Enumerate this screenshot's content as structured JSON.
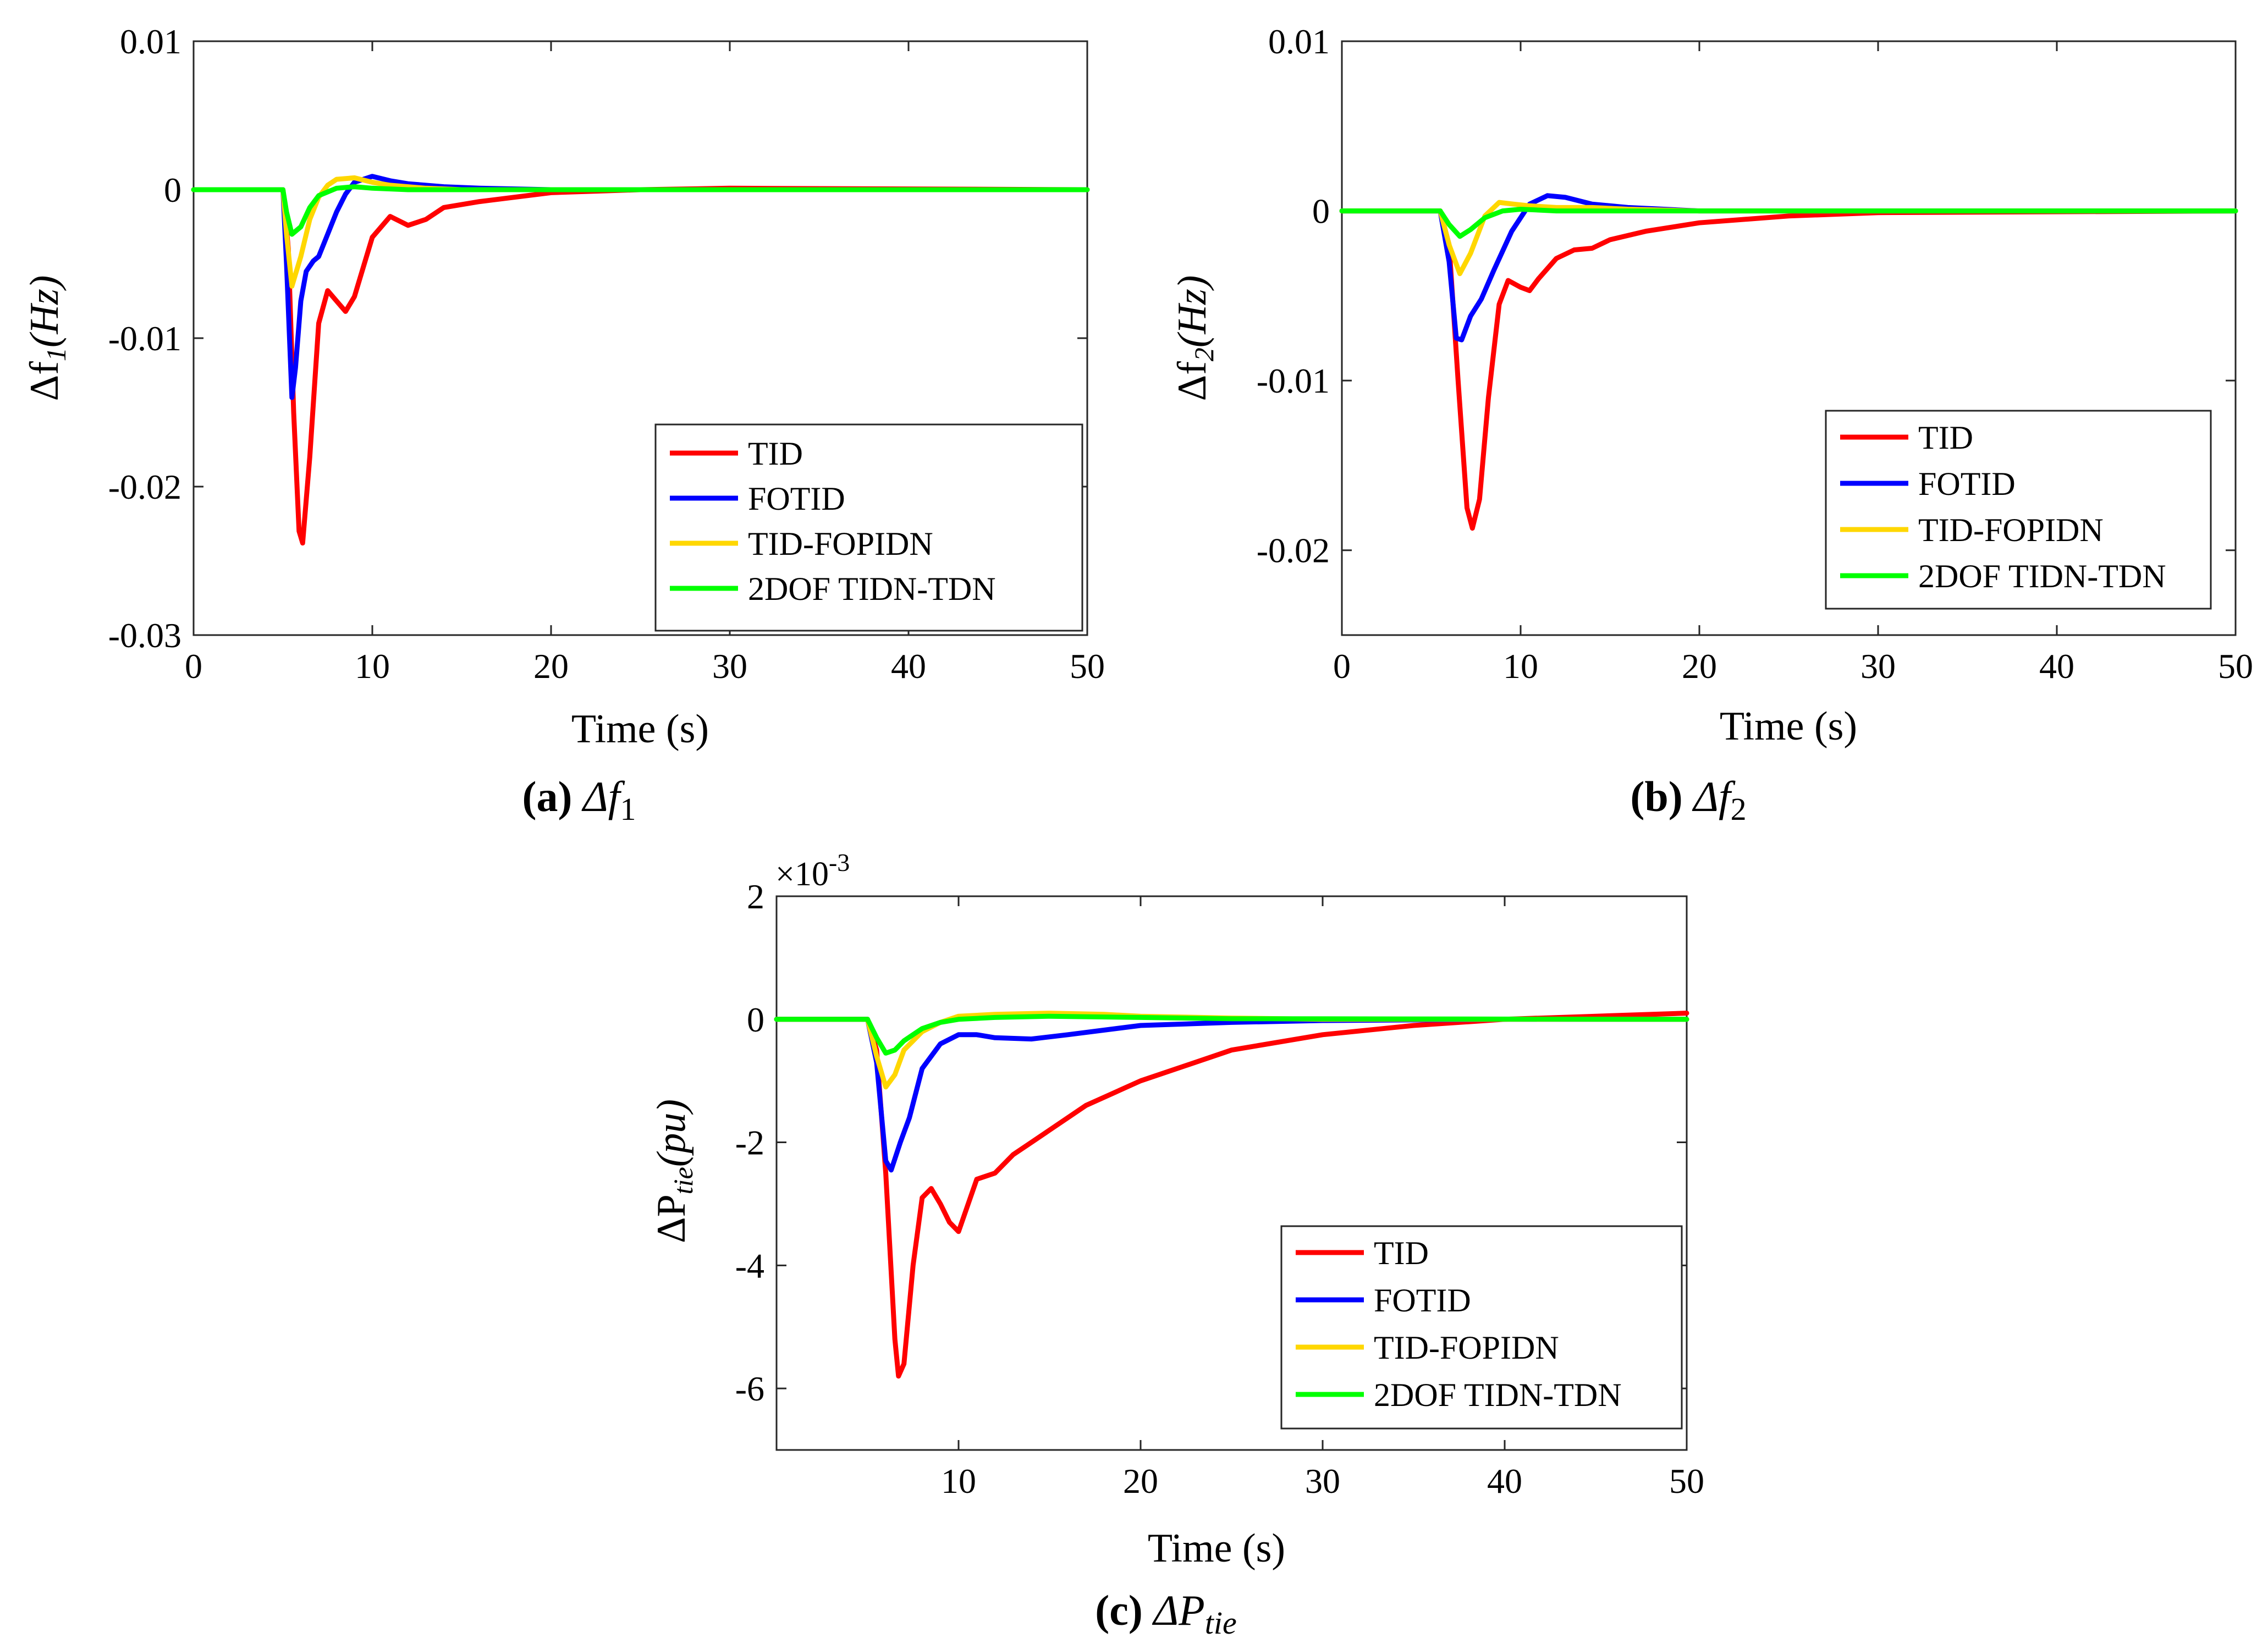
{
  "figure": {
    "colors": {
      "TID": "#ff0000",
      "FOTID": "#0000ff",
      "TID-FOPIDN": "#ffd700",
      "2DOF TIDN-TDN": "#00ff00",
      "axes": "#262626"
    }
  },
  "chart_data": [
    {
      "id": "a",
      "type": "line",
      "caption_label": "(a)",
      "caption_math": "Δf",
      "caption_sub": "1",
      "ylabel_main": "Δf",
      "ylabel_sub": "1",
      "ylabel_unit": "(Hz)",
      "xlabel": "Time (s)",
      "xlim": [
        0,
        50
      ],
      "ylim": [
        -0.03,
        0.01
      ],
      "xticks": [
        0,
        10,
        20,
        30,
        40,
        50
      ],
      "xtick_labels": [
        "0",
        "10",
        "20",
        "30",
        "40",
        "50"
      ],
      "yticks": [
        -0.03,
        -0.02,
        -0.01,
        0,
        0.01
      ],
      "ytick_labels": [
        "-0.03",
        "-0.02",
        "-0.01",
        "0",
        "0.01"
      ],
      "multiplier": "",
      "legend_position": "bottom-right",
      "series": [
        {
          "name": "TID",
          "x": [
            0,
            5,
            5.3,
            5.6,
            5.9,
            6.1,
            6.5,
            7,
            7.5,
            8,
            8.5,
            9,
            10,
            11,
            12,
            13,
            14,
            16,
            20,
            25,
            30,
            50
          ],
          "y": [
            0,
            0,
            -0.004,
            -0.015,
            -0.023,
            -0.0238,
            -0.018,
            -0.009,
            -0.0068,
            -0.0075,
            -0.0082,
            -0.0072,
            -0.0032,
            -0.0018,
            -0.0024,
            -0.002,
            -0.0012,
            -0.0008,
            -0.0002,
            0,
            0.0001,
            0
          ]
        },
        {
          "name": "FOTID",
          "x": [
            0,
            5,
            5.2,
            5.5,
            5.7,
            6,
            6.3,
            6.7,
            7,
            7.5,
            8,
            8.5,
            9,
            10,
            11,
            12,
            14,
            16,
            20,
            50
          ],
          "y": [
            0,
            0,
            -0.005,
            -0.014,
            -0.012,
            -0.0075,
            -0.0055,
            -0.0048,
            -0.0045,
            -0.003,
            -0.0015,
            -0.0003,
            0.0005,
            0.0009,
            0.0006,
            0.0004,
            0.0002,
            0.0001,
            0,
            0
          ]
        },
        {
          "name": "TID-FOPIDN",
          "x": [
            0,
            5,
            5.2,
            5.5,
            6,
            6.5,
            7,
            7.5,
            8,
            9,
            10,
            11,
            13,
            15,
            50
          ],
          "y": [
            0,
            0,
            -0.003,
            -0.0065,
            -0.0045,
            -0.002,
            -0.0005,
            0.0003,
            0.0007,
            0.0008,
            0.0005,
            0.0003,
            0.0001,
            0,
            0
          ]
        },
        {
          "name": "2DOF TIDN-TDN",
          "x": [
            0,
            5,
            5.2,
            5.5,
            6,
            6.5,
            7,
            8,
            9,
            10,
            12,
            50
          ],
          "y": [
            0,
            0,
            -0.0015,
            -0.003,
            -0.0025,
            -0.0012,
            -0.0004,
            0.0001,
            0.0002,
            0.0001,
            0,
            0
          ]
        }
      ]
    },
    {
      "id": "b",
      "type": "line",
      "caption_label": "(b)",
      "caption_math": "Δf",
      "caption_sub": "2",
      "ylabel_main": "Δf",
      "ylabel_sub": "2",
      "ylabel_unit": "(Hz)",
      "xlabel": "Time (s)",
      "xlim": [
        0,
        50
      ],
      "ylim": [
        -0.025,
        0.01
      ],
      "xticks": [
        0,
        10,
        20,
        30,
        40,
        50
      ],
      "xtick_labels": [
        "0",
        "10",
        "20",
        "30",
        "40",
        "50"
      ],
      "yticks": [
        -0.02,
        -0.01,
        0,
        0.01
      ],
      "ytick_labels": [
        "-0.02",
        "-0.01",
        "0",
        "0.01"
      ],
      "multiplier": "",
      "legend_position": "right",
      "series": [
        {
          "name": "TID",
          "x": [
            0,
            5.5,
            6,
            6.5,
            7,
            7.3,
            7.7,
            8.2,
            8.8,
            9.3,
            10,
            10.5,
            11,
            12,
            13,
            14,
            15,
            17,
            20,
            25,
            30,
            50
          ],
          "y": [
            0,
            0,
            -0.002,
            -0.01,
            -0.0175,
            -0.0187,
            -0.017,
            -0.011,
            -0.0055,
            -0.0041,
            -0.0045,
            -0.0047,
            -0.004,
            -0.0028,
            -0.0023,
            -0.0022,
            -0.0017,
            -0.0012,
            -0.0007,
            -0.0003,
            -0.0001,
            0
          ]
        },
        {
          "name": "FOTID",
          "x": [
            0,
            5.5,
            6,
            6.4,
            6.7,
            7.2,
            7.8,
            8.5,
            9.5,
            10.5,
            11.5,
            12.5,
            14,
            16,
            20,
            50
          ],
          "y": [
            0,
            0,
            -0.003,
            -0.0075,
            -0.0076,
            -0.0062,
            -0.0052,
            -0.0035,
            -0.0012,
            0.0004,
            0.0009,
            0.0008,
            0.0004,
            0.0002,
            0,
            0
          ]
        },
        {
          "name": "TID-FOPIDN",
          "x": [
            0,
            5.5,
            6,
            6.6,
            7.2,
            8,
            8.8,
            9.6,
            10.5,
            12,
            14,
            16,
            20,
            50
          ],
          "y": [
            0,
            0,
            -0.002,
            -0.0037,
            -0.0025,
            -0.0003,
            0.0005,
            0.0004,
            0.0003,
            0.0002,
            0.0002,
            0.0001,
            0,
            0
          ]
        },
        {
          "name": "2DOF TIDN-TDN",
          "x": [
            0,
            5.5,
            6,
            6.6,
            7.2,
            8,
            9,
            10,
            12,
            50
          ],
          "y": [
            0,
            0,
            -0.0008,
            -0.0015,
            -0.0011,
            -0.0004,
            0,
            0.0001,
            0,
            0
          ]
        }
      ]
    },
    {
      "id": "c",
      "type": "line",
      "caption_label": "(c)",
      "caption_math": "ΔP",
      "caption_sub": "tie",
      "ylabel_main": "ΔP",
      "ylabel_sub": "tie",
      "ylabel_unit": "(pu)",
      "xlabel": "Time (s)",
      "xlim": [
        0,
        50
      ],
      "ylim": [
        -7,
        2
      ],
      "xticks": [
        10,
        20,
        30,
        40,
        50
      ],
      "xtick_labels": [
        "10",
        "20",
        "30",
        "40",
        "50"
      ],
      "yticks": [
        -6,
        -4,
        -2,
        0,
        2
      ],
      "ytick_labels": [
        "-6",
        "-4",
        "-2",
        "0",
        "2"
      ],
      "multiplier": "×10",
      "multiplier_exp": "-3",
      "legend_position": "bottom-right",
      "series": [
        {
          "name": "TID",
          "x": [
            0,
            5,
            5.5,
            6,
            6.5,
            6.7,
            7,
            7.5,
            8,
            8.5,
            9,
            9.5,
            10,
            11,
            12,
            13,
            14,
            15,
            17,
            20,
            25,
            30,
            35,
            40,
            45,
            50
          ],
          "y": [
            0,
            0,
            -0.5,
            -2.5,
            -5.2,
            -5.8,
            -5.6,
            -4,
            -2.9,
            -2.75,
            -3,
            -3.3,
            -3.45,
            -2.6,
            -2.5,
            -2.2,
            -2,
            -1.8,
            -1.4,
            -1,
            -0.5,
            -0.25,
            -0.1,
            0,
            0.05,
            0.1
          ]
        },
        {
          "name": "FOTID",
          "x": [
            0,
            5,
            5.5,
            6,
            6.3,
            6.8,
            7.3,
            8,
            9,
            10,
            11,
            12,
            14,
            16,
            20,
            25,
            30,
            40,
            50
          ],
          "y": [
            0,
            0,
            -0.7,
            -2.3,
            -2.45,
            -2,
            -1.6,
            -0.8,
            -0.4,
            -0.25,
            -0.25,
            -0.3,
            -0.32,
            -0.25,
            -0.1,
            -0.05,
            -0.02,
            0,
            0
          ]
        },
        {
          "name": "TID-FOPIDN",
          "x": [
            0,
            5,
            5.5,
            6,
            6.5,
            7,
            8,
            9,
            10,
            12,
            15,
            18,
            20,
            25,
            30,
            50
          ],
          "y": [
            0,
            0,
            -0.6,
            -1.1,
            -0.9,
            -0.5,
            -0.2,
            -0.05,
            0.05,
            0.08,
            0.1,
            0.08,
            0.05,
            0.02,
            0,
            0
          ]
        },
        {
          "name": "2DOF TIDN-TDN",
          "x": [
            0,
            5,
            5.5,
            6,
            6.5,
            7,
            8,
            9,
            10,
            12,
            15,
            20,
            25,
            50
          ],
          "y": [
            0,
            0,
            -0.3,
            -0.55,
            -0.5,
            -0.35,
            -0.15,
            -0.05,
            0,
            0.03,
            0.05,
            0.03,
            0.01,
            0
          ]
        }
      ]
    }
  ]
}
